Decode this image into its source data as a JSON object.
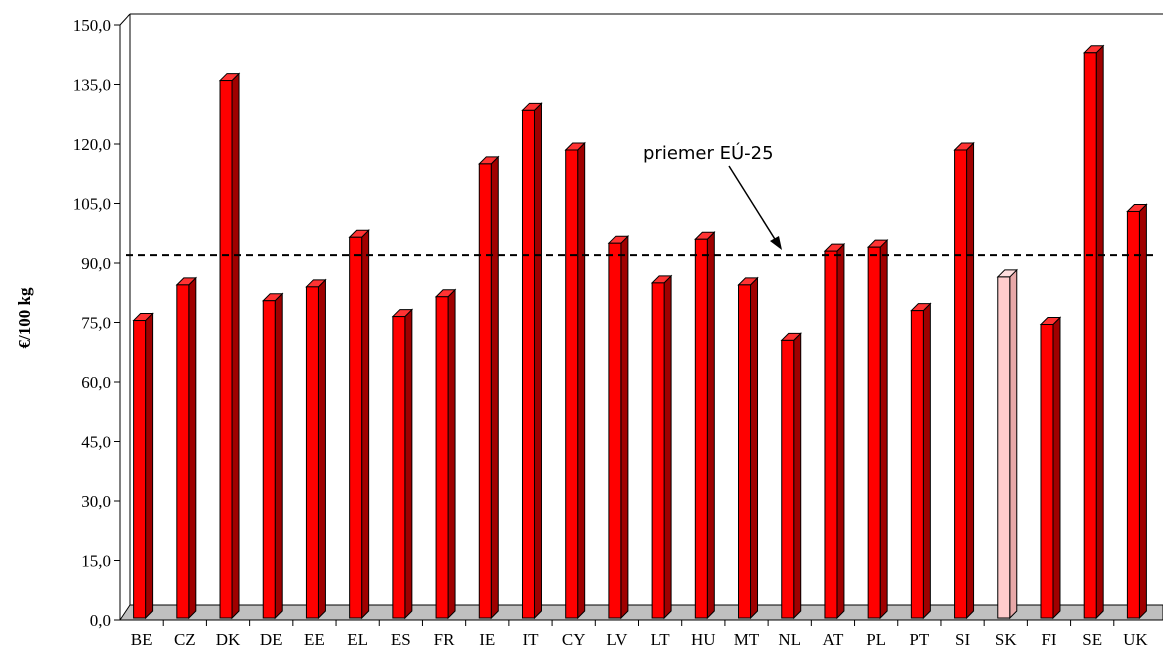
{
  "chart_data": {
    "type": "bar",
    "title": "",
    "xlabel": "",
    "ylabel": "€/100 kg",
    "ylim": [
      0,
      150
    ],
    "yticks": [
      "0,0",
      "15,0",
      "30,0",
      "45,0",
      "60,0",
      "75,0",
      "90,0",
      "105,0",
      "120,0",
      "135,0",
      "150,0"
    ],
    "categories": [
      "BE",
      "CZ",
      "DK",
      "DE",
      "EE",
      "EL",
      "ES",
      "FR",
      "IE",
      "IT",
      "CY",
      "LV",
      "LT",
      "HU",
      "MT",
      "NL",
      "AT",
      "PL",
      "PT",
      "SI",
      "SK",
      "FI",
      "SE",
      "UK"
    ],
    "values": [
      76.5,
      85.5,
      137.0,
      81.5,
      85.0,
      97.5,
      77.5,
      82.5,
      116.0,
      129.5,
      119.5,
      96.0,
      86.0,
      97.0,
      85.5,
      71.5,
      94.0,
      95.0,
      79.0,
      119.5,
      87.5,
      75.5,
      144.0,
      104.0
    ],
    "highlight_category": "SK",
    "bar_color": "#ff0000",
    "highlight_color": "#ffcccc",
    "reference_line": {
      "label": "priemer EÚ-25",
      "value": 93.0
    },
    "grid": false,
    "legend": "none"
  }
}
